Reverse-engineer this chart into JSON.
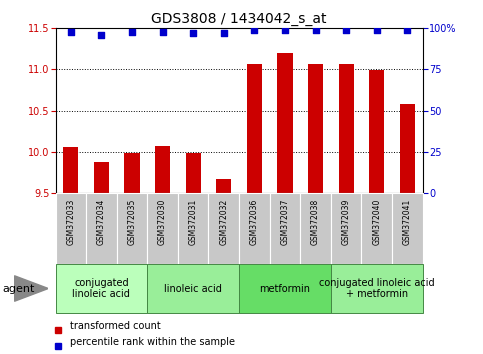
{
  "title": "GDS3808 / 1434042_s_at",
  "samples": [
    "GSM372033",
    "GSM372034",
    "GSM372035",
    "GSM372030",
    "GSM372031",
    "GSM372032",
    "GSM372036",
    "GSM372037",
    "GSM372038",
    "GSM372039",
    "GSM372040",
    "GSM372041"
  ],
  "bar_values": [
    10.06,
    9.88,
    9.99,
    10.07,
    9.99,
    9.67,
    11.07,
    11.2,
    11.07,
    11.07,
    10.99,
    10.58
  ],
  "dot_values": [
    98,
    96,
    98,
    98,
    97,
    97,
    99,
    99,
    99,
    99,
    99,
    99
  ],
  "ylim_left": [
    9.5,
    11.5
  ],
  "ylim_right": [
    0,
    100
  ],
  "yticks_left": [
    9.5,
    10.0,
    10.5,
    11.0,
    11.5
  ],
  "yticks_right": [
    0,
    25,
    50,
    75,
    100
  ],
  "ytick_labels_right": [
    "0",
    "25",
    "50",
    "75",
    "100%"
  ],
  "bar_color": "#cc0000",
  "dot_color": "#0000cc",
  "bar_bottom": 9.5,
  "groups": [
    {
      "label": "conjugated\nlinoleic acid",
      "start": 0,
      "end": 3,
      "color": "#bbffbb"
    },
    {
      "label": "linoleic acid",
      "start": 3,
      "end": 6,
      "color": "#99ee99"
    },
    {
      "label": "metformin",
      "start": 6,
      "end": 9,
      "color": "#66dd66"
    },
    {
      "label": "conjugated linoleic acid\n+ metformin",
      "start": 9,
      "end": 12,
      "color": "#99ee99"
    }
  ],
  "agent_label": "agent",
  "legend_bar_label": "transformed count",
  "legend_dot_label": "percentile rank within the sample",
  "grid_color": "#000000",
  "tick_area_color": "#c8c8c8",
  "title_fontsize": 10,
  "tick_fontsize": 7,
  "sample_fontsize": 5.5,
  "group_fontsize": 7,
  "legend_fontsize": 7
}
